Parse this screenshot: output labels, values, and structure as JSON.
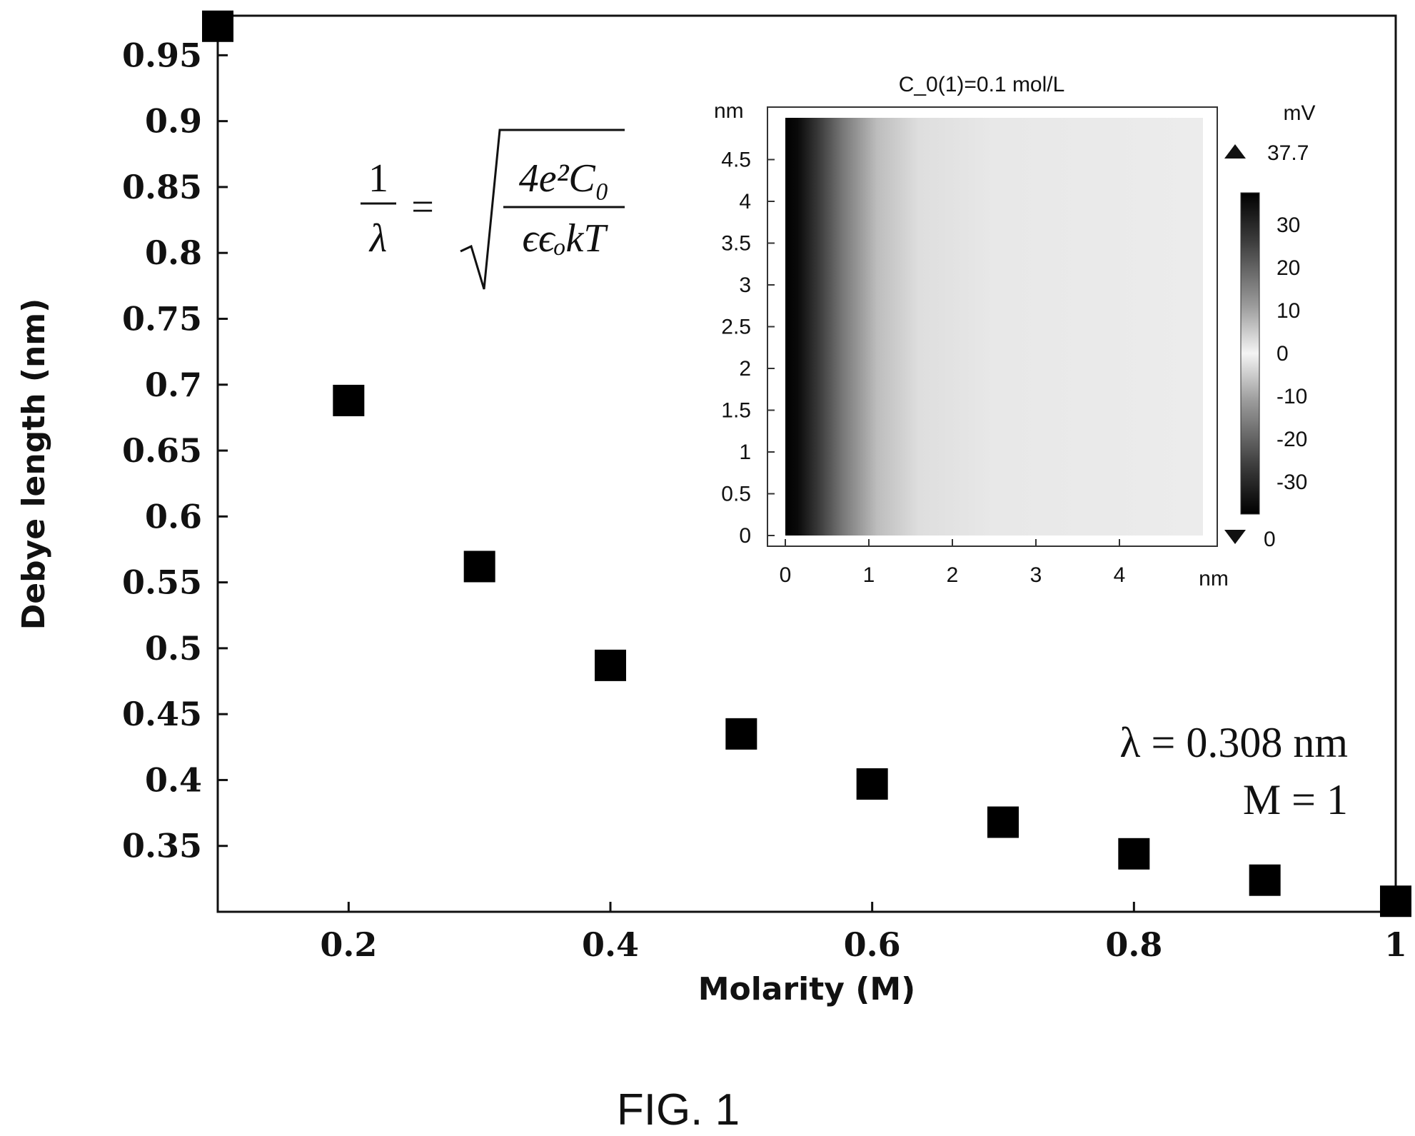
{
  "figure_label": "FIG. 1",
  "chart_data": [
    {
      "type": "scatter",
      "xlabel": "Molarity (M)",
      "ylabel": "Debye length (nm)",
      "xlim": [
        0.1,
        1.0
      ],
      "ylim": [
        0.3,
        0.98
      ],
      "xticks": [
        "0.2",
        "0.4",
        "0.6",
        "0.8",
        "1"
      ],
      "yticks": [
        "0.35",
        "0.4",
        "0.45",
        "0.5",
        "0.55",
        "0.6",
        "0.65",
        "0.7",
        "0.75",
        "0.8",
        "0.85",
        "0.9",
        "0.95"
      ],
      "marker": "square",
      "marker_color": "#000000",
      "x": [
        0.1,
        0.2,
        0.3,
        0.4,
        0.5,
        0.6,
        0.7,
        0.8,
        0.9,
        1.0
      ],
      "y": [
        0.972,
        0.688,
        0.562,
        0.487,
        0.435,
        0.397,
        0.368,
        0.344,
        0.324,
        0.308
      ],
      "grid": false,
      "annotations": {
        "formula": {
          "lhs_num": "1",
          "lhs_den": "λ",
          "eq": "=",
          "rad_num": "4e²C₀",
          "rad_den": "ϵϵₒkT"
        },
        "result_line1": "λ = 0.308 nm",
        "result_line2": "M = 1"
      }
    },
    {
      "type": "heatmap",
      "title": "C_0(1)=0.1 mol/L",
      "xunit": "nm",
      "yunit": "nm",
      "xlim": [
        0,
        5
      ],
      "ylim": [
        0,
        5
      ],
      "xticks": [
        "0",
        "1",
        "2",
        "3",
        "4"
      ],
      "yticks": [
        "0",
        "0.5",
        "1",
        "1.5",
        "2",
        "2.5",
        "3",
        "3.5",
        "4",
        "4.5"
      ],
      "colorbar": {
        "unit": "mV",
        "max_label": "37.7",
        "min_label": "0",
        "ticks": [
          "30",
          "20",
          "10",
          "0",
          "-10",
          "-20",
          "-30"
        ],
        "colormap": "dark-light-dark grayscale"
      },
      "field": "potential decays with x from wall at x=0",
      "decay_length": 0.308
    }
  ]
}
